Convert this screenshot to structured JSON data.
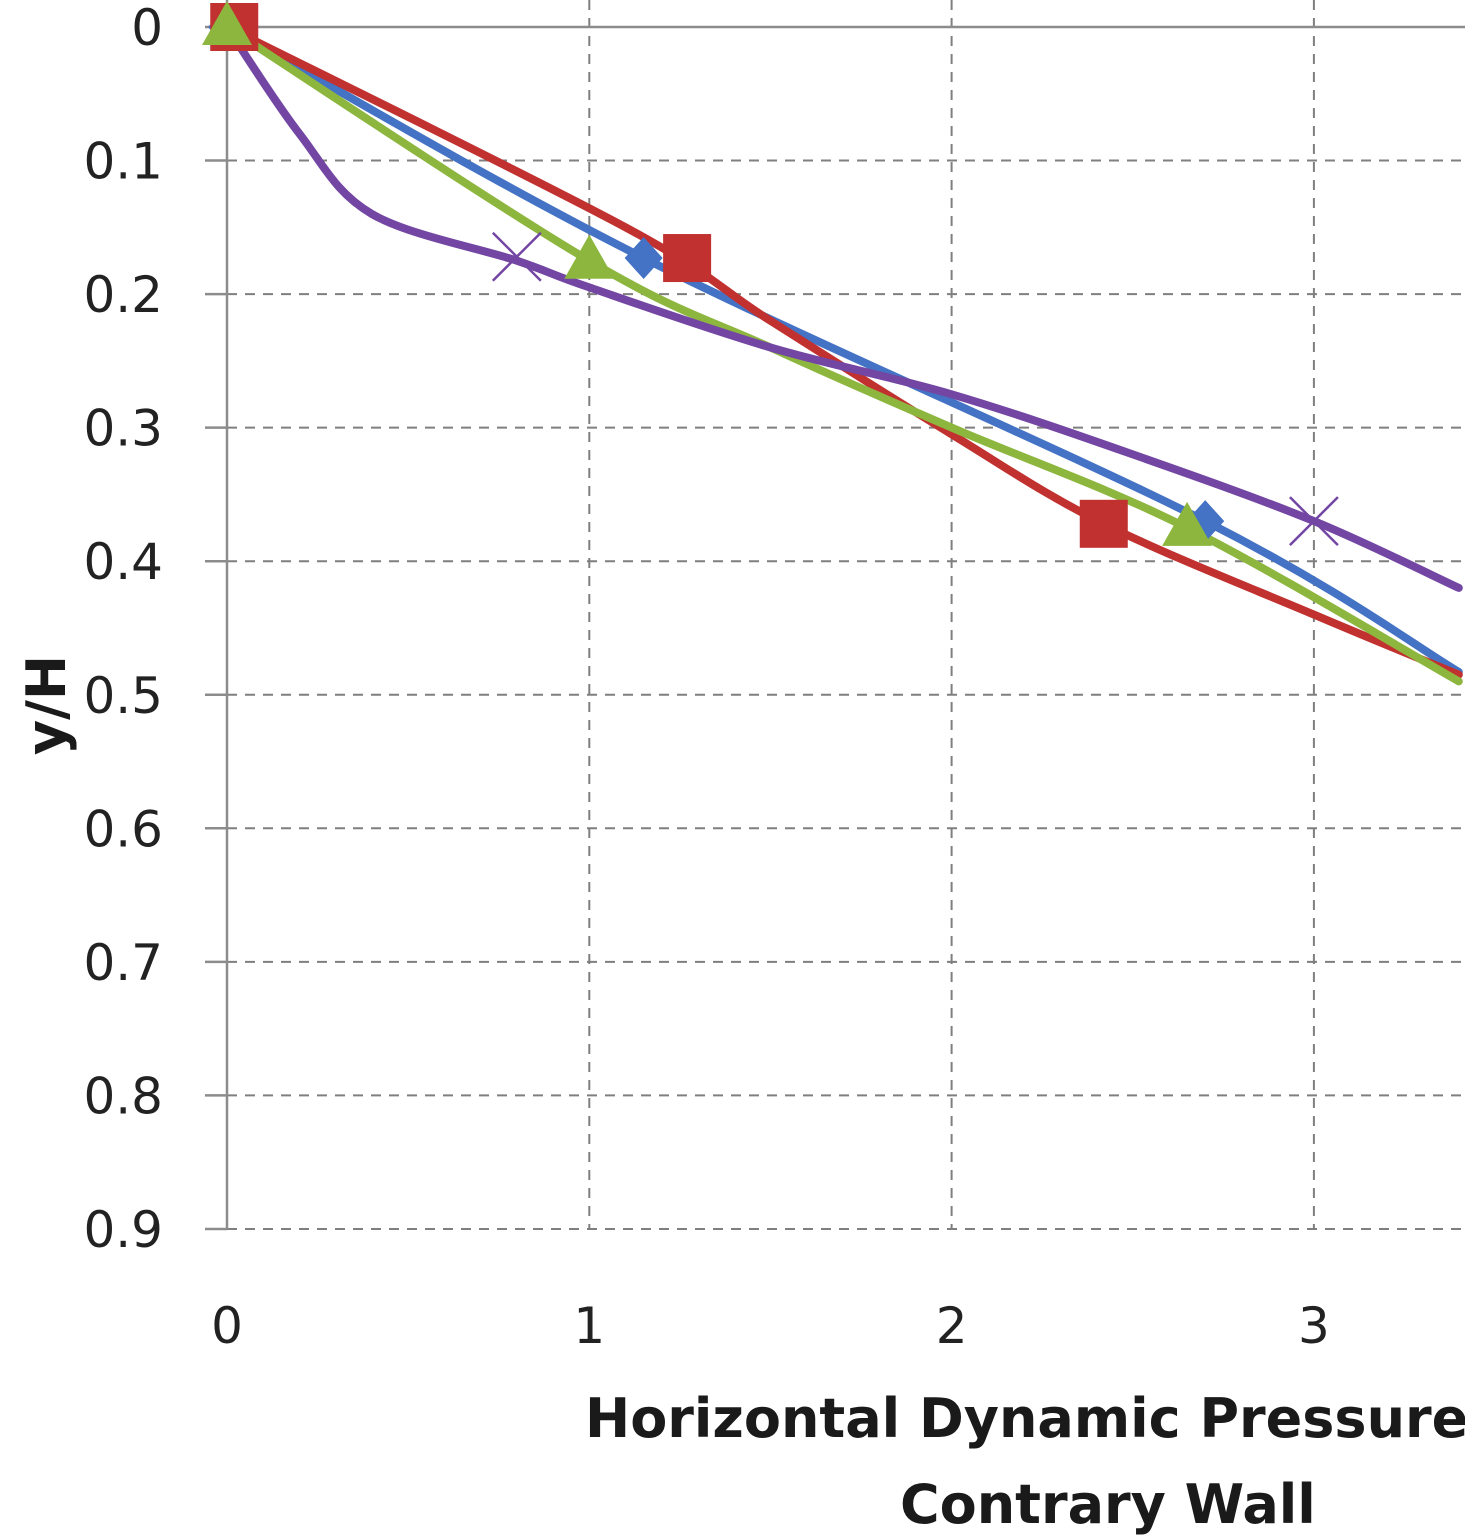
{
  "chart_data": {
    "type": "line",
    "title": "",
    "xlabel_line1": "Horizontal Dynamic Pressure (",
    "xlabel_line2": "Contrary Wall",
    "ylabel": "y/H",
    "xlim": [
      0,
      3.4
    ],
    "ylim": [
      0,
      0.9
    ],
    "y_inverted": true,
    "x_ticks": [
      "0",
      "1",
      "2",
      "3"
    ],
    "y_ticks": [
      "0",
      "0.1",
      "0.2",
      "0.3",
      "0.4",
      "0.5",
      "0.6",
      "0.7",
      "0.8",
      "0.9"
    ],
    "grid": true,
    "series": [
      {
        "color": "#4472c4",
        "marker": "diamond",
        "points": [
          [
            0,
            0
          ],
          [
            1.15,
            0.173
          ],
          [
            2.7,
            0.37
          ],
          [
            3.4,
            0.483
          ]
        ],
        "markers": [
          [
            0,
            0
          ],
          [
            1.15,
            0.173
          ],
          [
            2.7,
            0.37
          ]
        ]
      },
      {
        "color": "#c0312f",
        "marker": "square",
        "points": [
          [
            0,
            0
          ],
          [
            1.1,
            0.15
          ],
          [
            1.5,
            0.22
          ],
          [
            2.0,
            0.305
          ],
          [
            2.42,
            0.372
          ],
          [
            3.0,
            0.44
          ],
          [
            3.4,
            0.485
          ]
        ],
        "markers": [
          [
            0.02,
            0
          ],
          [
            1.27,
            0.173
          ],
          [
            2.42,
            0.372
          ]
        ]
      },
      {
        "color": "#8db63f",
        "marker": "triangle",
        "points": [
          [
            0,
            0
          ],
          [
            1.0,
            0.175
          ],
          [
            1.5,
            0.24
          ],
          [
            2.0,
            0.3
          ],
          [
            2.65,
            0.375
          ],
          [
            3.4,
            0.49
          ]
        ],
        "markers": [
          [
            0,
            0
          ],
          [
            1.0,
            0.175
          ],
          [
            2.65,
            0.375
          ]
        ]
      },
      {
        "color": "#7346a3",
        "marker": "x",
        "points": [
          [
            0,
            0
          ],
          [
            0.2,
            0.08
          ],
          [
            0.4,
            0.14
          ],
          [
            0.8,
            0.175
          ],
          [
            1.0,
            0.195
          ],
          [
            1.5,
            0.24
          ],
          [
            2.0,
            0.275
          ],
          [
            2.5,
            0.32
          ],
          [
            3.0,
            0.37
          ],
          [
            3.4,
            0.42
          ]
        ],
        "markers": [
          [
            0.8,
            0.172
          ],
          [
            3.0,
            0.37
          ]
        ]
      }
    ]
  }
}
